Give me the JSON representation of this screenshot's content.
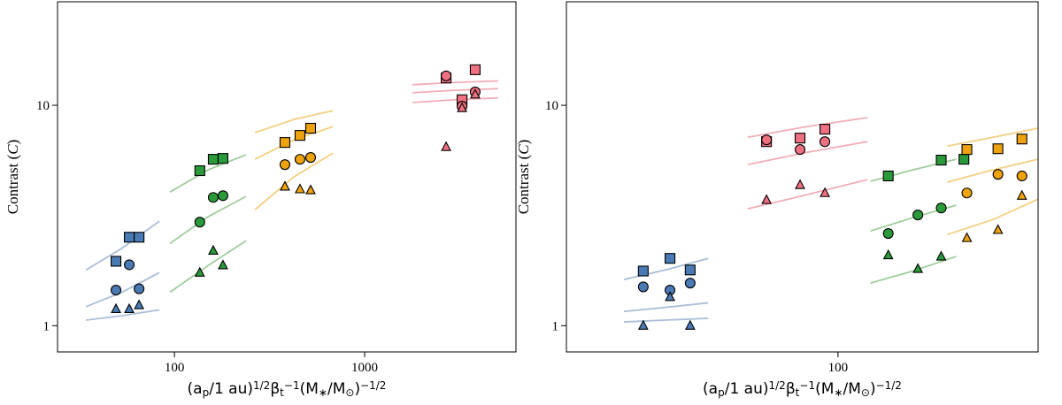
{
  "chart_data": [
    {
      "type": "scatter",
      "xscale": "log",
      "yscale": "log",
      "xlim": [
        24.3,
        6240
      ],
      "ylim": [
        0.76,
        29.5
      ],
      "xticks": [
        100,
        1000
      ],
      "yticks": [
        1,
        10
      ],
      "ylabel": [
        {
          "text": "Contrast ("
        },
        {
          "text": "C",
          "style": "italic"
        },
        {
          "text": ")"
        }
      ],
      "xlabel": [
        {
          "text": "(a"
        },
        {
          "text": "p",
          "pos": "sub"
        },
        {
          "text": "/1 au)"
        },
        {
          "text": "1/2",
          "pos": "sup"
        },
        {
          "text": "β"
        },
        {
          "text": "t",
          "pos": "sub"
        },
        {
          "text": "−1",
          "pos": "sup"
        },
        {
          "text": "(M"
        },
        {
          "text": "∗",
          "pos": "sub"
        },
        {
          "text": "/M"
        },
        {
          "text": "⊙",
          "pos": "sub"
        },
        {
          "text": ")"
        },
        {
          "text": "−1/2",
          "pos": "sup"
        }
      ],
      "series": [
        {
          "marker": "line",
          "color": "#a9bed7",
          "x": [
            34.3,
            53.2,
            83.3
          ],
          "values": [
            1.79,
            2.25,
            2.98
          ]
        },
        {
          "marker": "line",
          "color": "#a9bed7",
          "x": [
            34.3,
            53.2,
            83.3
          ],
          "values": [
            1.22,
            1.42,
            1.74
          ]
        },
        {
          "marker": "line",
          "color": "#a9bed7",
          "x": [
            34.3,
            53.2,
            83.3
          ],
          "values": [
            1.06,
            1.11,
            1.18
          ]
        },
        {
          "marker": "line",
          "color": "#9fce9c",
          "x": [
            94.8,
            150,
            238
          ],
          "values": [
            4.04,
            5.09,
            5.96
          ]
        },
        {
          "marker": "line",
          "color": "#9fce9c",
          "x": [
            94.8,
            150,
            238
          ],
          "values": [
            2.36,
            3.12,
            3.86
          ]
        },
        {
          "marker": "line",
          "color": "#9fce9c",
          "x": [
            94.8,
            150,
            238
          ],
          "values": [
            1.42,
            1.87,
            2.43
          ]
        },
        {
          "marker": "line",
          "color": "#f4cf80",
          "x": [
            265,
            424,
            681
          ],
          "values": [
            7.51,
            8.62,
            9.46
          ]
        },
        {
          "marker": "line",
          "color": "#f4cf80",
          "x": [
            265,
            424,
            681
          ],
          "values": [
            5.69,
            6.97,
            8.01
          ]
        },
        {
          "marker": "line",
          "color": "#f4cf80",
          "x": [
            265,
            424,
            681
          ],
          "values": [
            3.36,
            4.73,
            6.07
          ]
        },
        {
          "marker": "line",
          "color": "#f3adb6",
          "x": [
            1783,
            2980,
            5035
          ],
          "values": [
            12.4,
            12.7,
            12.9
          ]
        },
        {
          "marker": "line",
          "color": "#f3adb6",
          "x": [
            1783,
            2980,
            5035
          ],
          "values": [
            11.4,
            11.7,
            11.9
          ]
        },
        {
          "marker": "line",
          "color": "#f3adb6",
          "x": [
            1783,
            2980,
            5035
          ],
          "values": [
            10.3,
            10.6,
            10.8
          ]
        },
        {
          "marker": "square",
          "color": "#4a7ab3",
          "x": [
            49.3,
            57.9,
            65.2
          ],
          "values": [
            1.96,
            2.52,
            2.52
          ]
        },
        {
          "marker": "circle",
          "color": "#4a7ab3",
          "x": [
            49.3,
            57.9,
            65.2
          ],
          "values": [
            1.45,
            1.89,
            1.47
          ]
        },
        {
          "marker": "triangle",
          "color": "#4a7ab3",
          "x": [
            49.3,
            57.9,
            65.2
          ],
          "values": [
            1.19,
            1.19,
            1.24
          ]
        },
        {
          "marker": "square",
          "color": "#2a9a3a",
          "x": [
            136,
            160,
            180
          ],
          "values": [
            5.05,
            5.69,
            5.74
          ]
        },
        {
          "marker": "circle",
          "color": "#2a9a3a",
          "x": [
            136,
            160,
            180
          ],
          "values": [
            2.95,
            3.82,
            3.89
          ]
        },
        {
          "marker": "triangle",
          "color": "#2a9a3a",
          "x": [
            136,
            160,
            180
          ],
          "values": [
            1.74,
            2.19,
            1.88
          ]
        },
        {
          "marker": "square",
          "color": "#eea20d",
          "x": [
            381,
            457,
            520
          ],
          "values": [
            6.78,
            7.3,
            7.87
          ]
        },
        {
          "marker": "circle",
          "color": "#eea20d",
          "x": [
            381,
            457,
            520
          ],
          "values": [
            5.38,
            5.69,
            5.8
          ]
        },
        {
          "marker": "triangle",
          "color": "#eea20d",
          "x": [
            381,
            457,
            520
          ],
          "values": [
            4.28,
            4.16,
            4.12
          ]
        },
        {
          "marker": "square",
          "color": "#ef7080",
          "x": [
            2680,
            3250,
            3810
          ],
          "values": [
            13.3,
            10.6,
            14.5
          ]
        },
        {
          "marker": "circle",
          "color": "#ef7080",
          "x": [
            2680,
            3250,
            3810
          ],
          "values": [
            13.6,
            9.91,
            11.5
          ]
        },
        {
          "marker": "triangle",
          "color": "#ef7080",
          "x": [
            2680,
            3250,
            3810
          ],
          "values": [
            6.47,
            9.72,
            11.2
          ]
        }
      ]
    },
    {
      "type": "scatter",
      "xscale": "log",
      "yscale": "log",
      "xlim": [
        19,
        340
      ],
      "ylim": [
        0.76,
        29.5
      ],
      "xticks": [
        100
      ],
      "yticks": [
        1,
        10
      ],
      "ylabel": [
        {
          "text": "Contrast ("
        },
        {
          "text": "C",
          "style": "italic"
        },
        {
          "text": ")"
        }
      ],
      "xlabel": [
        {
          "text": "(a"
        },
        {
          "text": "p",
          "pos": "sub"
        },
        {
          "text": "/1 au)"
        },
        {
          "text": "1/2",
          "pos": "sup"
        },
        {
          "text": "β"
        },
        {
          "text": "t",
          "pos": "sub"
        },
        {
          "text": "−1",
          "pos": "sup"
        },
        {
          "text": "(M"
        },
        {
          "text": "∗",
          "pos": "sub"
        },
        {
          "text": "/M"
        },
        {
          "text": "⊙",
          "pos": "sub"
        },
        {
          "text": ")"
        },
        {
          "text": "−1/2",
          "pos": "sup"
        }
      ],
      "series": [
        {
          "marker": "line",
          "color": "#a9bed7",
          "x": [
            27.0,
            34.8,
            45.2
          ],
          "values": [
            1.62,
            1.79,
            2.02
          ]
        },
        {
          "marker": "line",
          "color": "#a9bed7",
          "x": [
            27.0,
            34.8,
            45.2
          ],
          "values": [
            1.16,
            1.21,
            1.27
          ]
        },
        {
          "marker": "line",
          "color": "#a9bed7",
          "x": [
            27.0,
            34.8,
            45.2
          ],
          "values": [
            1.04,
            1.06,
            1.08
          ]
        },
        {
          "marker": "line",
          "color": "#f3adb6",
          "x": [
            57.6,
            82.8,
            119.7
          ],
          "values": [
            7.16,
            8.01,
            8.79
          ]
        },
        {
          "marker": "line",
          "color": "#f3adb6",
          "x": [
            57.6,
            82.8,
            119.7
          ],
          "values": [
            5.38,
            6.12,
            6.84
          ]
        },
        {
          "marker": "line",
          "color": "#f3adb6",
          "x": [
            57.6,
            82.8,
            119.7
          ],
          "values": [
            3.39,
            3.93,
            4.6
          ]
        },
        {
          "marker": "line",
          "color": "#9fce9c",
          "x": [
            122,
            158,
            206
          ],
          "values": [
            4.52,
            5.09,
            5.69
          ]
        },
        {
          "marker": "line",
          "color": "#9fce9c",
          "x": [
            122,
            158,
            206
          ],
          "values": [
            2.69,
            3.09,
            3.52
          ]
        },
        {
          "marker": "line",
          "color": "#9fce9c",
          "x": [
            122,
            158,
            206
          ],
          "values": [
            1.56,
            1.77,
            2.06
          ]
        },
        {
          "marker": "line",
          "color": "#f4cf80",
          "x": [
            195,
            258,
            340
          ],
          "values": [
            6.53,
            7.16,
            7.87
          ]
        },
        {
          "marker": "line",
          "color": "#f4cf80",
          "x": [
            195,
            258,
            340
          ],
          "values": [
            4.48,
            5.09,
            5.69
          ]
        },
        {
          "marker": "line",
          "color": "#f4cf80",
          "x": [
            195,
            258,
            340
          ],
          "values": [
            2.59,
            3.03,
            3.75
          ]
        },
        {
          "marker": "square",
          "color": "#4a7ab3",
          "x": [
            30.4,
            35.8,
            40.5
          ],
          "values": [
            1.77,
            2.02,
            1.79
          ]
        },
        {
          "marker": "circle",
          "color": "#4a7ab3",
          "x": [
            30.4,
            35.8,
            40.5
          ],
          "values": [
            1.5,
            1.45,
            1.56
          ]
        },
        {
          "marker": "triangle",
          "color": "#4a7ab3",
          "x": [
            30.4,
            35.8,
            40.5
          ],
          "values": [
            1.0,
            1.35,
            1.0
          ]
        },
        {
          "marker": "square",
          "color": "#ef7080",
          "x": [
            64.6,
            79.3,
            92.3
          ],
          "values": [
            6.84,
            7.1,
            7.79
          ]
        },
        {
          "marker": "circle",
          "color": "#ef7080",
          "x": [
            64.6,
            79.3,
            92.3
          ],
          "values": [
            6.97,
            6.3,
            6.84
          ]
        },
        {
          "marker": "triangle",
          "color": "#ef7080",
          "x": [
            64.6,
            79.3,
            92.3
          ],
          "values": [
            3.72,
            4.35,
            4.0
          ]
        },
        {
          "marker": "square",
          "color": "#2a9a3a",
          "x": [
            136,
            188,
            216
          ],
          "values": [
            4.78,
            5.64,
            5.69
          ]
        },
        {
          "marker": "circle",
          "color": "#2a9a3a",
          "x": [
            136,
            163,
            188
          ],
          "values": [
            2.62,
            3.18,
            3.42
          ]
        },
        {
          "marker": "triangle",
          "color": "#2a9a3a",
          "x": [
            136,
            163,
            188
          ],
          "values": [
            2.09,
            1.81,
            2.06
          ]
        },
        {
          "marker": "square",
          "color": "#eea20d",
          "x": [
            220,
            266,
            308
          ],
          "values": [
            6.3,
            6.35,
            7.03
          ]
        },
        {
          "marker": "circle",
          "color": "#eea20d",
          "x": [
            220,
            266,
            308
          ],
          "values": [
            4.0,
            4.86,
            4.78
          ]
        },
        {
          "marker": "triangle",
          "color": "#eea20d",
          "x": [
            220,
            266,
            308
          ],
          "values": [
            2.5,
            2.72,
            3.89
          ]
        }
      ]
    }
  ]
}
